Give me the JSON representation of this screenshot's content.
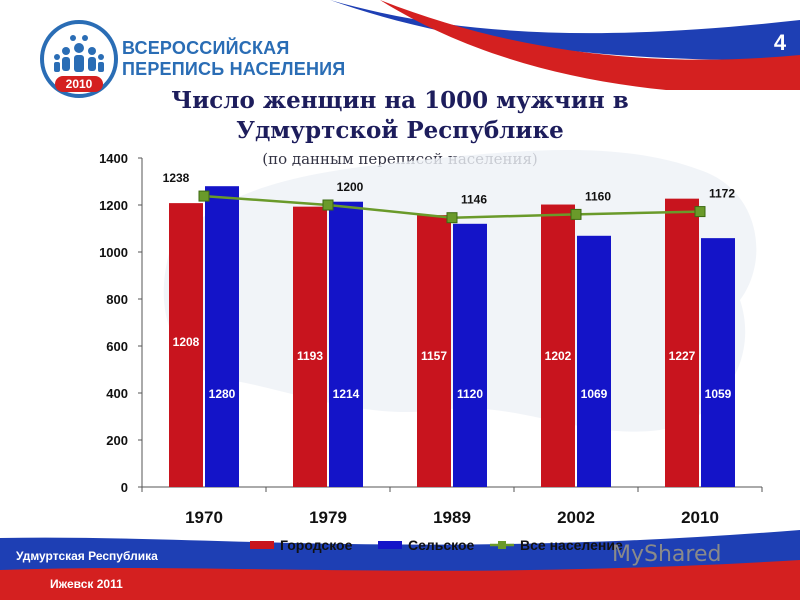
{
  "header": {
    "logo_line1": "ВСЕРОССИЙСКАЯ",
    "logo_line2": "ПЕРЕПИСЬ НАСЕЛЕНИЯ",
    "logo_year": "2010",
    "slide_number": "4"
  },
  "title_line1": "Число женщин на 1000 мужчин в",
  "title_line2": "Удмуртской Республике",
  "subtitle": "(по данным переписей населения)",
  "footer": {
    "region": "Удмуртская Республика",
    "city_year": "Ижевск 2011"
  },
  "watermark": "MyShared",
  "colors": {
    "urban": "#c8141e",
    "rural": "#1414c8",
    "total": "#6a9a2a",
    "flag_blue": "#1e3fb4",
    "flag_red": "#d42020"
  },
  "chart_data": {
    "type": "bar",
    "categories": [
      "1970",
      "1979",
      "1989",
      "2002",
      "2010"
    ],
    "ylim": [
      0,
      1400
    ],
    "yticks": [
      0,
      200,
      400,
      600,
      800,
      1000,
      1200,
      1400
    ],
    "series": [
      {
        "name": "Городское",
        "type": "bar",
        "values": [
          1208,
          1193,
          1157,
          1202,
          1227
        ]
      },
      {
        "name": "Сельское",
        "type": "bar",
        "values": [
          1280,
          1214,
          1120,
          1069,
          1059
        ]
      },
      {
        "name": "Все население",
        "type": "line",
        "values": [
          1238,
          1200,
          1146,
          1160,
          1172
        ]
      }
    ],
    "legend": [
      "Городское",
      "Сельское",
      "Все население"
    ],
    "legend_position": "bottom",
    "grid": false
  }
}
